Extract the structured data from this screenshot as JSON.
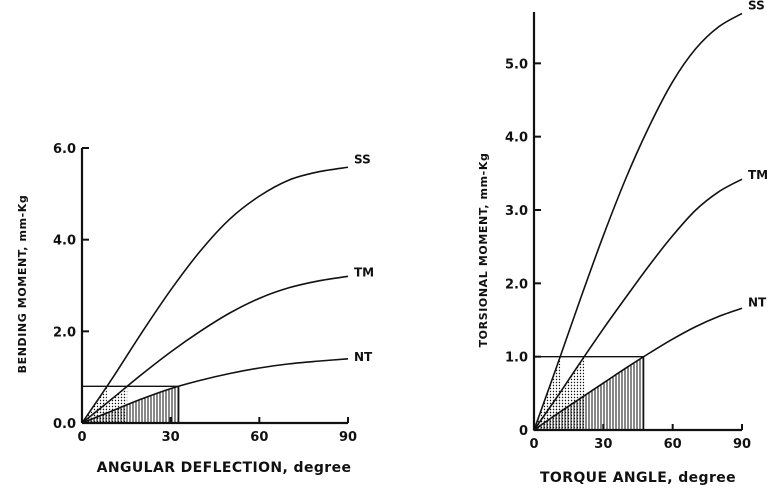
{
  "chart_data": [
    {
      "type": "line",
      "xlabel": "ANGULAR DEFLECTION, degree",
      "ylabel": "BENDING MOMENT, mm-Kg",
      "xlim": [
        0,
        90
      ],
      "ylim": [
        0,
        6.0
      ],
      "xticks": [
        "0",
        "30",
        "60",
        "90"
      ],
      "yticks": [
        "0.0",
        "2.0",
        "4.0",
        "6.0"
      ],
      "grid": false,
      "reference_level": 0.8,
      "series": [
        {
          "name": "SS",
          "x": [
            0,
            10,
            20,
            30,
            40,
            50,
            60,
            70,
            80,
            90
          ],
          "y": [
            0,
            0.95,
            1.95,
            2.9,
            3.75,
            4.45,
            4.95,
            5.3,
            5.48,
            5.58
          ]
        },
        {
          "name": "TM",
          "x": [
            0,
            10,
            20,
            30,
            40,
            50,
            60,
            70,
            80,
            90
          ],
          "y": [
            0,
            0.52,
            1.05,
            1.55,
            2.0,
            2.4,
            2.72,
            2.95,
            3.1,
            3.2
          ]
        },
        {
          "name": "NT",
          "x": [
            0,
            10,
            20,
            30,
            40,
            50,
            60,
            70,
            80,
            90
          ],
          "y": [
            0,
            0.26,
            0.52,
            0.75,
            0.93,
            1.08,
            1.2,
            1.29,
            1.35,
            1.4
          ]
        }
      ]
    },
    {
      "type": "line",
      "xlabel": "TORQUE ANGLE, degree",
      "ylabel": "TORSIONAL MOMENT, mm-Kg",
      "xlim": [
        0,
        90
      ],
      "ylim": [
        0,
        5.7
      ],
      "xticks": [
        "0",
        "30",
        "60",
        "90"
      ],
      "yticks": [
        "0",
        "1.0",
        "2.0",
        "3.0",
        "4.0",
        "5.0"
      ],
      "grid": false,
      "reference_level": 1.0,
      "series": [
        {
          "name": "SS",
          "x": [
            0,
            10,
            20,
            30,
            40,
            50,
            60,
            70,
            80,
            90
          ],
          "y": [
            0,
            0.88,
            1.78,
            2.65,
            3.45,
            4.15,
            4.75,
            5.2,
            5.5,
            5.68
          ]
        },
        {
          "name": "TM",
          "x": [
            0,
            10,
            20,
            30,
            40,
            50,
            60,
            70,
            80,
            90
          ],
          "y": [
            0,
            0.45,
            0.92,
            1.38,
            1.82,
            2.25,
            2.65,
            3.0,
            3.25,
            3.42
          ]
        },
        {
          "name": "NT",
          "x": [
            0,
            10,
            20,
            30,
            40,
            50,
            60,
            70,
            80,
            90
          ],
          "y": [
            0,
            0.22,
            0.43,
            0.64,
            0.85,
            1.05,
            1.24,
            1.41,
            1.55,
            1.66
          ]
        }
      ]
    }
  ]
}
